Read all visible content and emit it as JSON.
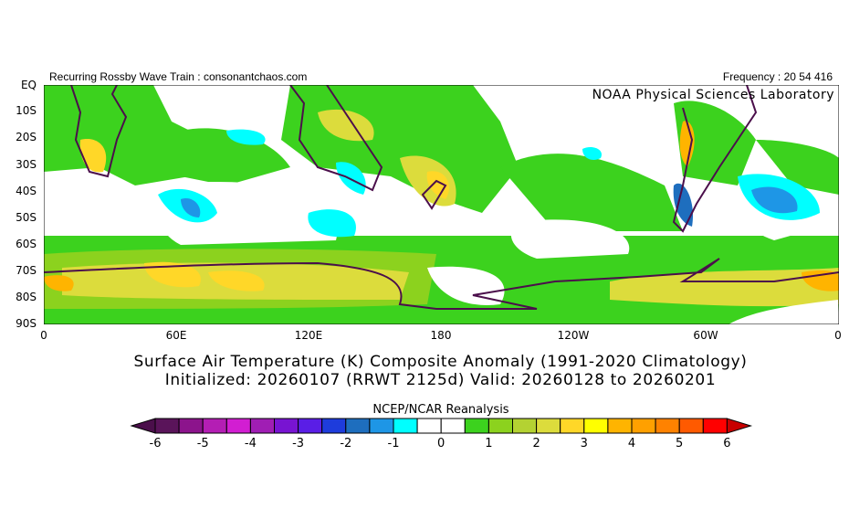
{
  "header": {
    "left_text": "Recurring Rossby Wave Train : consonantchaos.com",
    "right_text": "Frequency : 20 54 416",
    "lab": "NOAA Physical Sciences Laboratory"
  },
  "axes": {
    "y_ticks": [
      "EQ",
      "10S",
      "20S",
      "30S",
      "40S",
      "50S",
      "60S",
      "70S",
      "80S",
      "90S"
    ],
    "x_ticks": [
      "0",
      "60E",
      "120E",
      "180",
      "120W",
      "60W",
      "0"
    ]
  },
  "title": {
    "line1": "Surface Air Temperature (K) Composite Anomaly (1991-2020 Climatology)",
    "line2": "Initialized: 20260107 (RRWT 2125d) Valid: 20260128 to 20260201"
  },
  "colorbar": {
    "label": "NCEP/NCAR Reanalysis",
    "tick_labels": [
      "-6",
      "-5",
      "-4",
      "-3",
      "-2",
      "-1",
      "0",
      "1",
      "2",
      "3",
      "4",
      "5",
      "6"
    ],
    "range": [
      -6,
      6
    ],
    "step": 0.5,
    "colors": [
      "#5a145a",
      "#8c148c",
      "#b41eb4",
      "#d21ed2",
      "#a01eb4",
      "#7814d2",
      "#5a1ee6",
      "#1e3cdc",
      "#1e6ebe",
      "#1e96e6",
      "#00ffff",
      "#ffffff",
      "#ffffff",
      "#3cd21e",
      "#8cd21e",
      "#b4d232",
      "#dcdc3c",
      "#ffd728",
      "#ffff00",
      "#ffb400",
      "#ffa000",
      "#ff8200",
      "#ff5a00",
      "#ff0000"
    ],
    "under_color": "#4b0f4b",
    "over_color": "#c80000"
  }
}
